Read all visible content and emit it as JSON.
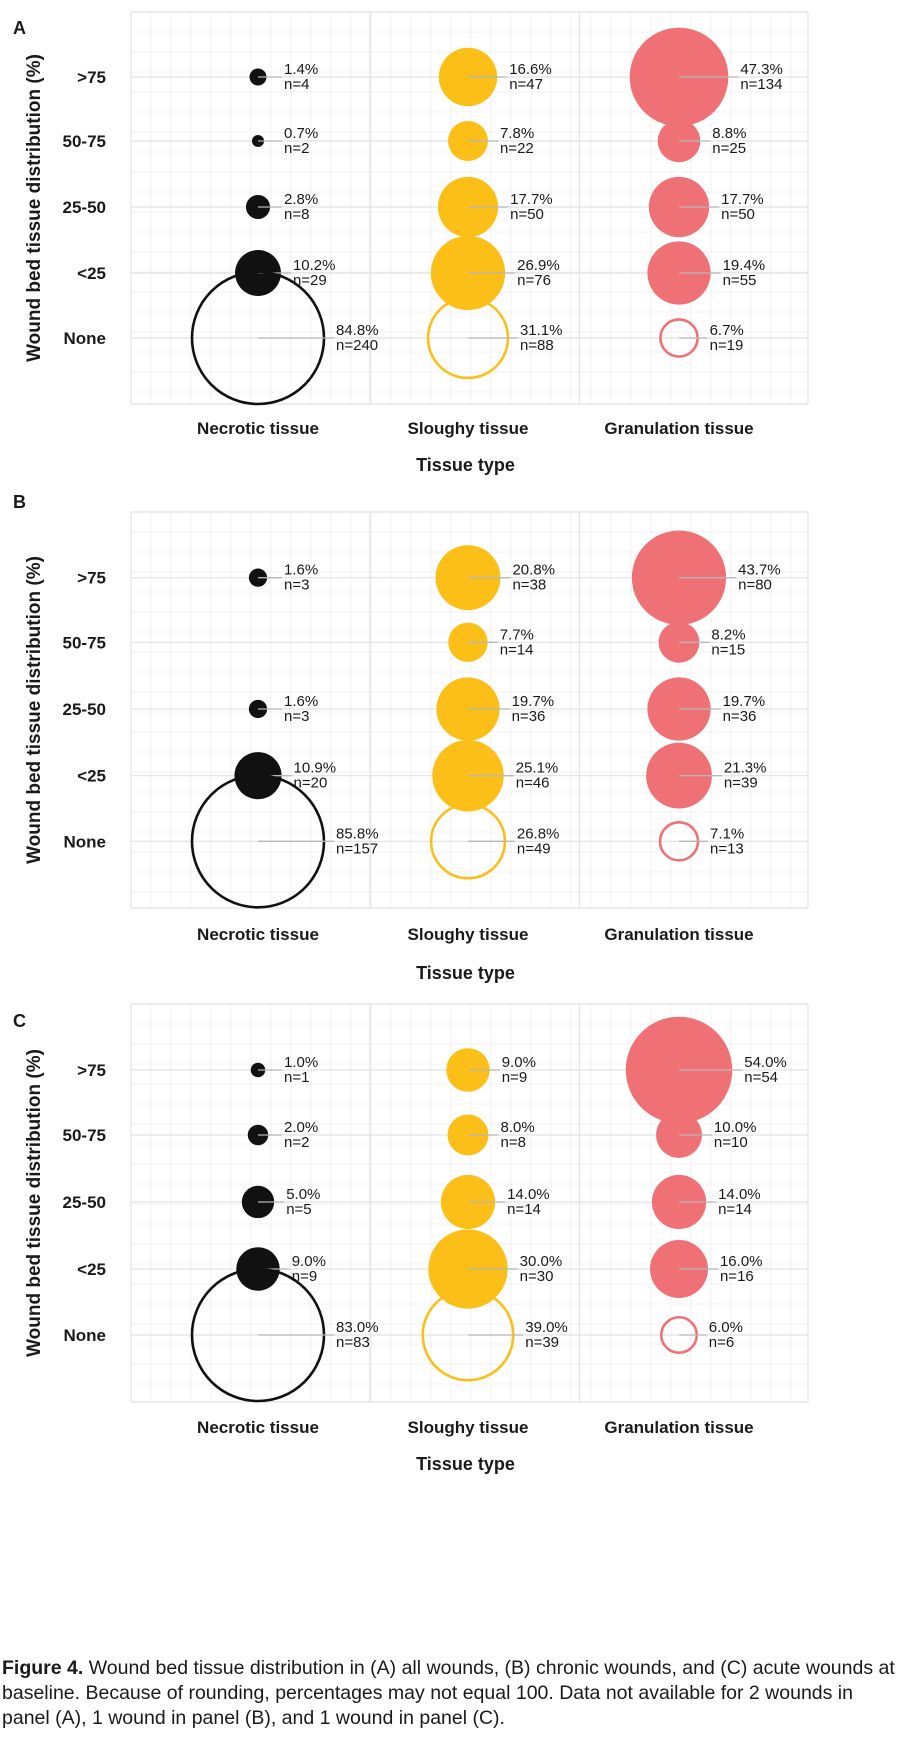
{
  "chart_data": [
    {
      "type": "bubble",
      "panel_label": "A",
      "xlabel": "Tissue type",
      "ylabel": "Wound bed tissue distribution (%)",
      "categories_x": [
        "Necrotic tissue",
        "Sloughy tissue",
        "Granulation tissue"
      ],
      "categories_y": [
        ">75",
        "50-75",
        "25-50",
        "<25",
        "None"
      ],
      "grid": true,
      "series": [
        {
          "values": [
            {
              "y": ">75",
              "pct": "1.4%",
              "n": "n=4",
              "count": 4
            },
            {
              "y": "50-75",
              "pct": "0.7%",
              "n": "n=2",
              "count": 2
            },
            {
              "y": "25-50",
              "pct": "2.8%",
              "n": "n=8",
              "count": 8
            },
            {
              "y": "<25",
              "pct": "10.2%",
              "n": "n=29",
              "count": 29
            },
            {
              "y": "None",
              "pct": "84.8%",
              "n": "n=240",
              "count": 240
            }
          ]
        },
        {
          "values": [
            {
              "y": ">75",
              "pct": "16.6%",
              "n": "n=47",
              "count": 47
            },
            {
              "y": "50-75",
              "pct": "7.8%",
              "n": "n=22",
              "count": 22
            },
            {
              "y": "25-50",
              "pct": "17.7%",
              "n": "n=50",
              "count": 50
            },
            {
              "y": "<25",
              "pct": "26.9%",
              "n": "n=76",
              "count": 76
            },
            {
              "y": "None",
              "pct": "31.1%",
              "n": "n=88",
              "count": 88
            }
          ]
        },
        {
          "values": [
            {
              "y": ">75",
              "pct": "47.3%",
              "n": "n=134",
              "count": 134
            },
            {
              "y": "50-75",
              "pct": "8.8%",
              "n": "n=25",
              "count": 25
            },
            {
              "y": "25-50",
              "pct": "17.7%",
              "n": "n=50",
              "count": 50
            },
            {
              "y": "<25",
              "pct": "19.4%",
              "n": "n=55",
              "count": 55
            },
            {
              "y": "None",
              "pct": "6.7%",
              "n": "n=19",
              "count": 19
            }
          ]
        }
      ]
    },
    {
      "type": "bubble",
      "panel_label": "B",
      "xlabel": "Tissue type",
      "ylabel": "Wound bed tissue distribution (%)",
      "categories_x": [
        "Necrotic tissue",
        "Sloughy tissue",
        "Granulation tissue"
      ],
      "categories_y": [
        ">75",
        "50-75",
        "25-50",
        "<25",
        "None"
      ],
      "grid": true,
      "series": [
        {
          "values": [
            {
              "y": ">75",
              "pct": "1.6%",
              "n": "n=3",
              "count": 3
            },
            {
              "y": "50-75",
              "pct": "",
              "n": "",
              "count": 0
            },
            {
              "y": "25-50",
              "pct": "1.6%",
              "n": "n=3",
              "count": 3
            },
            {
              "y": "<25",
              "pct": "10.9%",
              "n": "n=20",
              "count": 20
            },
            {
              "y": "None",
              "pct": "85.8%",
              "n": "n=157",
              "count": 157
            }
          ]
        },
        {
          "values": [
            {
              "y": ">75",
              "pct": "20.8%",
              "n": "n=38",
              "count": 38
            },
            {
              "y": "50-75",
              "pct": "7.7%",
              "n": "n=14",
              "count": 14
            },
            {
              "y": "25-50",
              "pct": "19.7%",
              "n": "n=36",
              "count": 36
            },
            {
              "y": "<25",
              "pct": "25.1%",
              "n": "n=46",
              "count": 46
            },
            {
              "y": "None",
              "pct": "26.8%",
              "n": "n=49",
              "count": 49
            }
          ]
        },
        {
          "values": [
            {
              "y": ">75",
              "pct": "43.7%",
              "n": "n=80",
              "count": 80
            },
            {
              "y": "50-75",
              "pct": "8.2%",
              "n": "n=15",
              "count": 15
            },
            {
              "y": "25-50",
              "pct": "19.7%",
              "n": "n=36",
              "count": 36
            },
            {
              "y": "<25",
              "pct": "21.3%",
              "n": "n=39",
              "count": 39
            },
            {
              "y": "None",
              "pct": "7.1%",
              "n": "n=13",
              "count": 13
            }
          ]
        }
      ]
    },
    {
      "type": "bubble",
      "panel_label": "C",
      "xlabel": "Tissue type",
      "ylabel": "Wound bed tissue distribution (%)",
      "categories_x": [
        "Necrotic tissue",
        "Sloughy tissue",
        "Granulation tissue"
      ],
      "categories_y": [
        ">75",
        "50-75",
        "25-50",
        "<25",
        "None"
      ],
      "grid": true,
      "series": [
        {
          "values": [
            {
              "y": ">75",
              "pct": "1.0%",
              "n": "n=1",
              "count": 1
            },
            {
              "y": "50-75",
              "pct": "2.0%",
              "n": "n=2",
              "count": 2
            },
            {
              "y": "25-50",
              "pct": "5.0%",
              "n": "n=5",
              "count": 5
            },
            {
              "y": "<25",
              "pct": "9.0%",
              "n": "n=9",
              "count": 9
            },
            {
              "y": "None",
              "pct": "83.0%",
              "n": "n=83",
              "count": 83
            }
          ]
        },
        {
          "values": [
            {
              "y": ">75",
              "pct": "9.0%",
              "n": "n=9",
              "count": 9
            },
            {
              "y": "50-75",
              "pct": "8.0%",
              "n": "n=8",
              "count": 8
            },
            {
              "y": "25-50",
              "pct": "14.0%",
              "n": "n=14",
              "count": 14
            },
            {
              "y": "<25",
              "pct": "30.0%",
              "n": "n=30",
              "count": 30
            },
            {
              "y": "None",
              "pct": "39.0%",
              "n": "n=39",
              "count": 39
            }
          ]
        },
        {
          "values": [
            {
              "y": ">75",
              "pct": "54.0%",
              "n": "n=54",
              "count": 54
            },
            {
              "y": "50-75",
              "pct": "10.0%",
              "n": "n=10",
              "count": 10
            },
            {
              "y": "25-50",
              "pct": "14.0%",
              "n": "n=14",
              "count": 14
            },
            {
              "y": "<25",
              "pct": "16.0%",
              "n": "n=16",
              "count": 16
            },
            {
              "y": "None",
              "pct": "6.0%",
              "n": "n=6",
              "count": 6
            }
          ]
        }
      ]
    }
  ],
  "colors": {
    "necrotic": "#111111",
    "sloughy": "#fbbf17",
    "granulation": "#ef7075",
    "grid_major": "#e2e2e2",
    "grid_minor": "#f1f1f1",
    "leader": "#b7b7b7"
  },
  "caption": {
    "label": "Figure 4.",
    "text": " Wound bed tissue distribution in (A) all wounds, (B) chronic wounds, and (C) acute wounds at baseline. Because of rounding, percentages may not equal 100. Data not available for 2 wounds in panel (A), 1 wound in panel (B), and 1 wound in panel (C)."
  }
}
